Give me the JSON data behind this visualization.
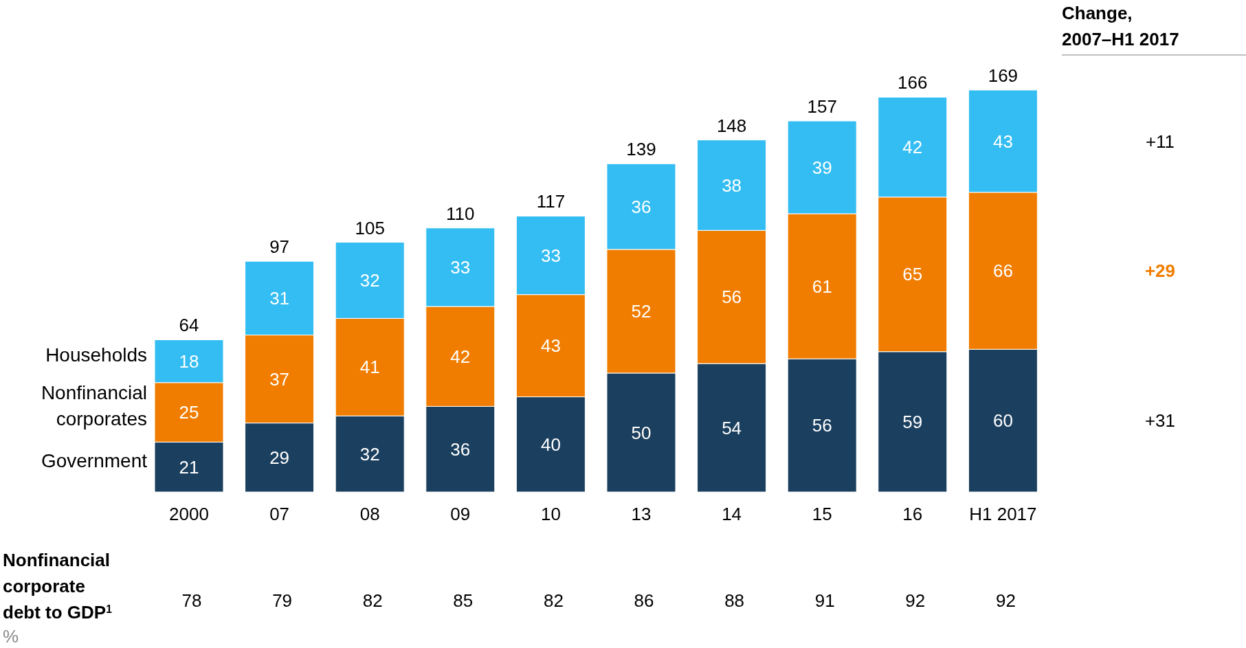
{
  "chart_data": [
    {
      "type": "bar",
      "stacked": true,
      "data_labels": true,
      "categories": [
        "2000",
        "07",
        "08",
        "09",
        "10",
        "13",
        "14",
        "15",
        "16",
        "H1 2017"
      ],
      "series": [
        {
          "name": "Government",
          "color": "#1b3f5e",
          "values": [
            21,
            29,
            32,
            36,
            40,
            50,
            54,
            56,
            59,
            60
          ]
        },
        {
          "name": "Nonfinancial corporates",
          "color": "#f07d00",
          "values": [
            25,
            37,
            41,
            42,
            43,
            52,
            56,
            61,
            65,
            66
          ]
        },
        {
          "name": "Households",
          "color": "#33bdf2",
          "values": [
            18,
            31,
            32,
            33,
            33,
            36,
            38,
            39,
            42,
            43
          ]
        }
      ],
      "totals": [
        "64",
        "97",
        "105",
        "110",
        "117",
        "139",
        "148",
        "157",
        "166",
        "169"
      ]
    },
    {
      "type": "other",
      "title": "Nonfinancial corporate debt to GDP$^{1}$",
      "subtitle": "%",
      "values": [
        78,
        79,
        82,
        85,
        82,
        86,
        88,
        91,
        92,
        92
      ],
      "data_labels": true
    },
    {
      "type": "other",
      "title": "Change, 2007–H1 2017",
      "value_labels": [
        "+31",
        "+29",
        "+11"
      ],
      "colors": [
        "#000000",
        "#f07d00",
        "#000000"
      ]
    }
  ]
}
